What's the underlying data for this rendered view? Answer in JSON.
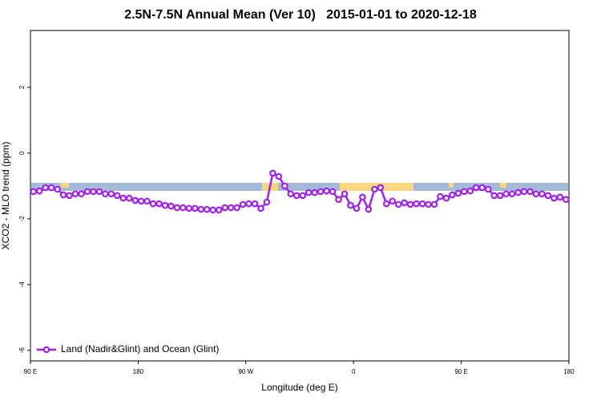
{
  "chart_data": {
    "type": "line",
    "title": "2.5N-7.5N Annual Mean (Ver 10)   2015-01-01 to 2020-12-18",
    "xlabel": "Longitude (deg E)",
    "ylabel": "XCO2 - MLO trend (ppm)",
    "xlim": [
      90,
      540
    ],
    "ylim": [
      -6.32,
      3.73
    ],
    "xticks": [
      {
        "value": 90,
        "label": "90 E"
      },
      180,
      {
        "value": 270,
        "label": "90 W"
      },
      {
        "value": 360,
        "label": "0"
      },
      {
        "value": 450,
        "label": "90 E"
      },
      {
        "value": 540,
        "label": "180"
      }
    ],
    "yticks": [
      -6,
      -4,
      -2,
      0,
      2
    ],
    "legend": "bottom-left",
    "x": [
      92.5,
      97.5,
      102.5,
      107.5,
      112.5,
      117.5,
      122.5,
      127.5,
      132.5,
      137.5,
      142.5,
      147.5,
      152.5,
      157.5,
      162.5,
      167.5,
      172.5,
      177.5,
      182.5,
      187.5,
      192.5,
      197.5,
      202.5,
      207.5,
      212.5,
      217.5,
      222.5,
      227.5,
      232.5,
      237.5,
      242.5,
      247.5,
      252.5,
      257.5,
      262.5,
      267.5,
      272.5,
      277.5,
      282.5,
      287.5,
      292.5,
      297.5,
      302.5,
      307.5,
      312.5,
      317.5,
      322.5,
      327.5,
      332.5,
      337.5,
      342.5,
      347.5,
      352.5,
      357.5,
      362.5,
      367.5,
      372.5,
      377.5,
      382.5,
      387.5,
      392.5,
      397.5,
      402.5,
      407.5,
      412.5,
      417.5,
      422.5,
      427.5,
      432.5,
      437.5,
      442.5,
      447.5,
      452.5,
      457.5,
      462.5,
      467.5,
      472.5,
      477.5,
      482.5,
      487.5,
      492.5,
      497.5,
      502.5,
      507.5,
      512.5,
      517.5,
      522.5,
      527.5,
      532.5,
      537.5
    ],
    "series": [
      {
        "name": "Land (Nadir&Glint) and Ocean (Glint)",
        "color": "#a020f0",
        "values": [
          -1.17,
          -1.15,
          -1.05,
          -1.05,
          -1.1,
          -1.27,
          -1.29,
          -1.24,
          -1.24,
          -1.17,
          -1.17,
          -1.17,
          -1.24,
          -1.24,
          -1.29,
          -1.37,
          -1.37,
          -1.44,
          -1.46,
          -1.46,
          -1.54,
          -1.54,
          -1.59,
          -1.61,
          -1.66,
          -1.66,
          -1.68,
          -1.68,
          -1.71,
          -1.71,
          -1.73,
          -1.73,
          -1.66,
          -1.66,
          -1.66,
          -1.56,
          -1.54,
          -1.54,
          -1.68,
          -1.49,
          -0.61,
          -0.71,
          -1.0,
          -1.24,
          -1.29,
          -1.29,
          -1.2,
          -1.2,
          -1.17,
          -1.15,
          -1.17,
          -1.41,
          -1.24,
          -1.59,
          -1.68,
          -1.34,
          -1.71,
          -1.1,
          -1.05,
          -1.54,
          -1.46,
          -1.56,
          -1.51,
          -1.56,
          -1.54,
          -1.54,
          -1.56,
          -1.56,
          -1.32,
          -1.37,
          -1.27,
          -1.22,
          -1.17,
          -1.15,
          -1.05,
          -1.05,
          -1.1,
          -1.29,
          -1.29,
          -1.24,
          -1.24,
          -1.2,
          -1.17,
          -1.17,
          -1.24,
          -1.24,
          -1.29,
          -1.37,
          -1.34,
          -1.41
        ]
      }
    ]
  }
}
